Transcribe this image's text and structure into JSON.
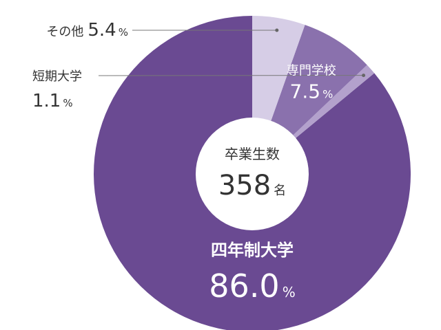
{
  "chart_data": {
    "type": "pie",
    "style": "donut",
    "center": {
      "title": "卒業生数",
      "value": "358",
      "unit": "名"
    },
    "slices": [
      {
        "label": "四年制大学",
        "value": 86.0,
        "value_text": "86.0",
        "unit": "%",
        "color": "#6a4a92",
        "label_position": "inside"
      },
      {
        "label": "短期大学",
        "value": 1.1,
        "value_text": "1.1",
        "unit": "%",
        "color": "#b3a1cc",
        "label_position": "outside-left"
      },
      {
        "label": "専門学校",
        "value": 7.5,
        "value_text": "7.5",
        "unit": "%",
        "color": "#8a71ad",
        "label_position": "inside"
      },
      {
        "label": "その他",
        "value": 5.4,
        "value_text": "5.4",
        "unit": "%",
        "color": "#d6cde6",
        "label_position": "outside-top"
      }
    ],
    "start": "top",
    "direction": "counterclockwise",
    "colors": {
      "leader_line": "#777777",
      "leader_dot": "#666666",
      "outside_text": "#333333",
      "inside_text": "#ffffff",
      "center_bg": "#ffffff",
      "center_text": "#333333"
    }
  }
}
